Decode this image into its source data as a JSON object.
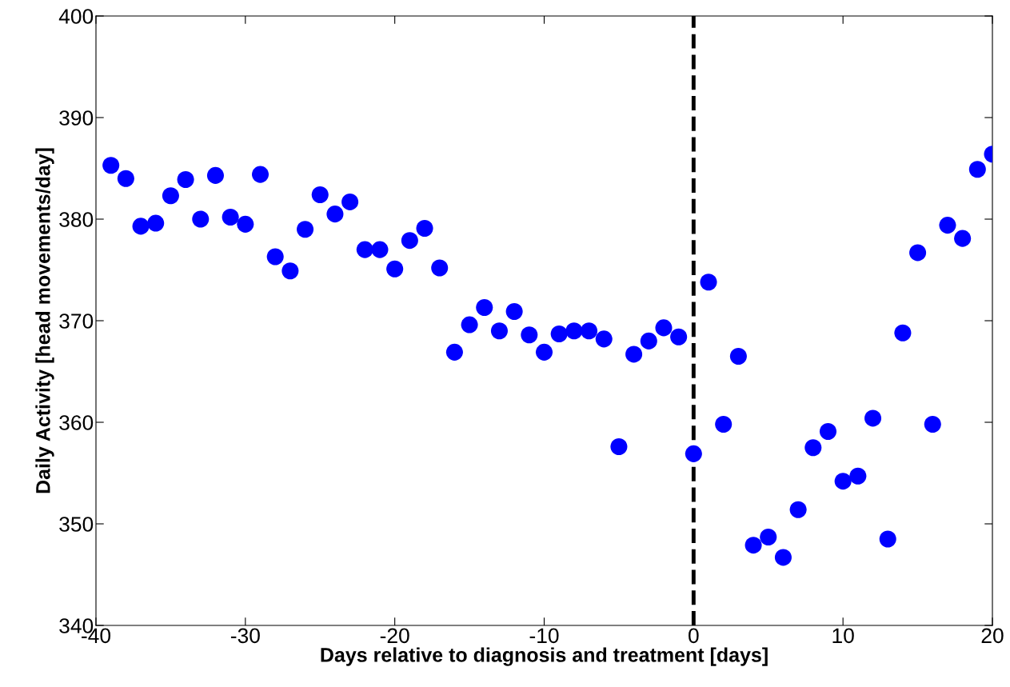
{
  "chart_data": {
    "type": "scatter",
    "xlabel": "Days relative to diagnosis and treatment [days]",
    "ylabel": "Daily Activity [head movements/day]",
    "x": [
      -39,
      -38,
      -37,
      -36,
      -35,
      -34,
      -33,
      -32,
      -31,
      -30,
      -29,
      -28,
      -27,
      -26,
      -25,
      -24,
      -23,
      -22,
      -21,
      -20,
      -19,
      -18,
      -17,
      -16,
      -15,
      -14,
      -13,
      -12,
      -11,
      -10,
      -9,
      -8,
      -7,
      -6,
      -5,
      -4,
      -3,
      -2,
      -1,
      0,
      1,
      2,
      3,
      4,
      5,
      6,
      7,
      8,
      9,
      10,
      11,
      12,
      13,
      14,
      15,
      16,
      17,
      18,
      19,
      20
    ],
    "series": [
      {
        "color": "#0000ff",
        "values": [
          385.3,
          384.0,
          379.3,
          379.6,
          382.3,
          383.9,
          380.0,
          384.3,
          380.2,
          379.5,
          384.4,
          376.3,
          374.9,
          379.0,
          382.4,
          380.5,
          381.7,
          377.0,
          377.0,
          375.1,
          377.9,
          379.1,
          375.2,
          366.9,
          369.6,
          371.3,
          369.0,
          370.9,
          368.6,
          366.9,
          368.7,
          369.0,
          369.0,
          368.2,
          357.6,
          366.7,
          368.0,
          369.3,
          368.4,
          356.9,
          373.8,
          359.8,
          366.5,
          347.9,
          348.7,
          346.7,
          351.4,
          357.5,
          359.1,
          354.2,
          354.7,
          360.4,
          348.5,
          368.8,
          376.7,
          359.8,
          379.4,
          378.1,
          384.9,
          386.4
        ]
      }
    ],
    "marker": "circle",
    "xlim": [
      -40,
      20
    ],
    "xticks": [
      -40,
      -30,
      -20,
      -10,
      0,
      10,
      20
    ],
    "ylim": [
      340,
      400
    ],
    "yticks": [
      340,
      350,
      360,
      370,
      380,
      390,
      400
    ],
    "ref_lines": [
      {
        "axis": "x",
        "value": 0,
        "color": "#000000",
        "line_style": "dashed"
      }
    ],
    "grid": false,
    "legend": false
  }
}
